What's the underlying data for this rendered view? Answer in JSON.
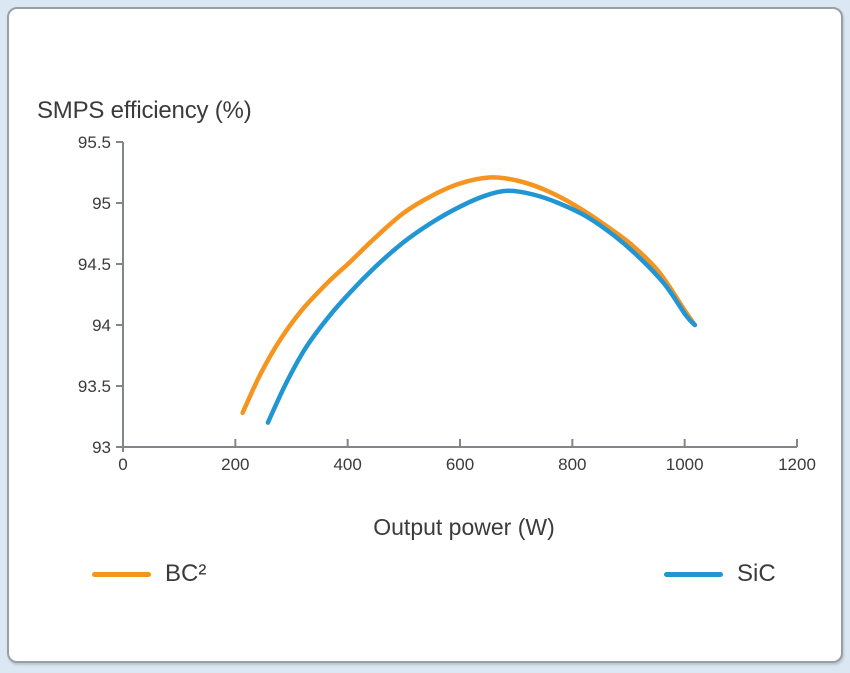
{
  "colors": {
    "page_background": "#dbe7f2",
    "card_background": "#ffffff",
    "card_border": "#98a0a7",
    "axis": "#818689",
    "text": "#3b3b3b",
    "bc2_orange": "#F5941E",
    "sic_blue": "#2196D3"
  },
  "chart_data": {
    "type": "line",
    "title": "SMPS efficiency (%)",
    "xlabel": "Output power (W)",
    "ylabel": "SMPS efficiency (%)",
    "xlim": [
      0,
      1200
    ],
    "ylim": [
      93,
      95.5
    ],
    "x_ticks": [
      "0",
      "200",
      "400",
      "600",
      "800",
      "1000",
      "1200"
    ],
    "y_ticks": [
      "93",
      "93.5",
      "94",
      "94.5",
      "95",
      "95.5"
    ],
    "grid": false,
    "legend_position": "bottom",
    "series": [
      {
        "name": "BC²",
        "color": "#F5941E",
        "x": [
          213,
          245,
          280,
          320,
          365,
          405,
          450,
          500,
          550,
          600,
          655,
          705,
          755,
          805,
          855,
          905,
          955,
          1000,
          1018
        ],
        "y": [
          93.28,
          93.6,
          93.88,
          94.13,
          94.35,
          94.52,
          94.72,
          94.92,
          95.06,
          95.16,
          95.21,
          95.18,
          95.1,
          94.98,
          94.83,
          94.66,
          94.43,
          94.12,
          94.0
        ]
      },
      {
        "name": "SiC",
        "color": "#2196D3",
        "x": [
          258,
          290,
          325,
          365,
          405,
          450,
          500,
          550,
          600,
          645,
          685,
          730,
          775,
          825,
          875,
          920,
          965,
          1002,
          1018
        ],
        "y": [
          93.2,
          93.52,
          93.81,
          94.06,
          94.27,
          94.48,
          94.68,
          94.84,
          94.97,
          95.06,
          95.1,
          95.07,
          95.0,
          94.89,
          94.73,
          94.55,
          94.33,
          94.08,
          94.0
        ]
      }
    ]
  }
}
